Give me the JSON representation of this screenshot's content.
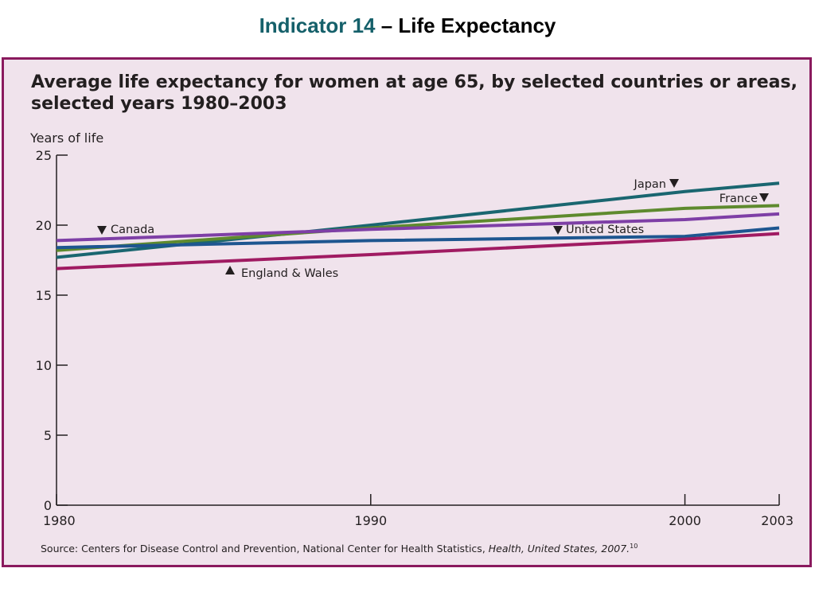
{
  "slide": {
    "title_accent": "Indicator 14",
    "title_rest": " – Life Expectancy"
  },
  "colors": {
    "panel_background": "#f0e3ec",
    "panel_border": "#8a1a5e",
    "title_accent": "#15606a"
  },
  "chart_data": {
    "type": "line",
    "title_line1": "Average life expectancy for women at age 65, by selected countries or areas,",
    "title_line2": "selected years 1980–2003",
    "xlabel": "",
    "ylabel": "Years of life",
    "xlim": [
      1980,
      2003
    ],
    "ylim": [
      0,
      25
    ],
    "x_ticks": [
      1980,
      1990,
      2000,
      2003
    ],
    "y_ticks": [
      0,
      5,
      10,
      15,
      20,
      25
    ],
    "grid": false,
    "series": [
      {
        "name": "Japan",
        "color": "#1a6670",
        "icon": "triangle-down-icon",
        "points": [
          [
            1980,
            17.7
          ],
          [
            1990,
            20.0
          ],
          [
            2000,
            22.4
          ],
          [
            2003,
            23.0
          ]
        ]
      },
      {
        "name": "France",
        "color": "#5e8a2e",
        "icon": "triangle-down-icon",
        "points": [
          [
            1980,
            18.2
          ],
          [
            1990,
            19.8
          ],
          [
            2000,
            21.2
          ],
          [
            2003,
            21.4
          ]
        ]
      },
      {
        "name": "Canada",
        "color": "#7e3fa6",
        "icon": "triangle-down-icon",
        "points": [
          [
            1980,
            18.9
          ],
          [
            1990,
            19.7
          ],
          [
            2000,
            20.4
          ],
          [
            2003,
            20.8
          ]
        ]
      },
      {
        "name": "United States",
        "color": "#1e5690",
        "icon": "triangle-down-icon",
        "points": [
          [
            1980,
            18.4
          ],
          [
            1990,
            18.9
          ],
          [
            2000,
            19.2
          ],
          [
            2003,
            19.8
          ]
        ]
      },
      {
        "name": "England & Wales",
        "color": "#a01b62",
        "icon": "triangle-up-icon",
        "points": [
          [
            1980,
            16.9
          ],
          [
            1990,
            17.9
          ],
          [
            2000,
            19.0
          ],
          [
            2003,
            19.4
          ]
        ]
      }
    ],
    "source_prefix": "Source:  Centers for Disease Control and Prevention, National Center for Health Statistics, ",
    "source_italic": "Health, United States, 2007.",
    "source_ref": "10"
  }
}
